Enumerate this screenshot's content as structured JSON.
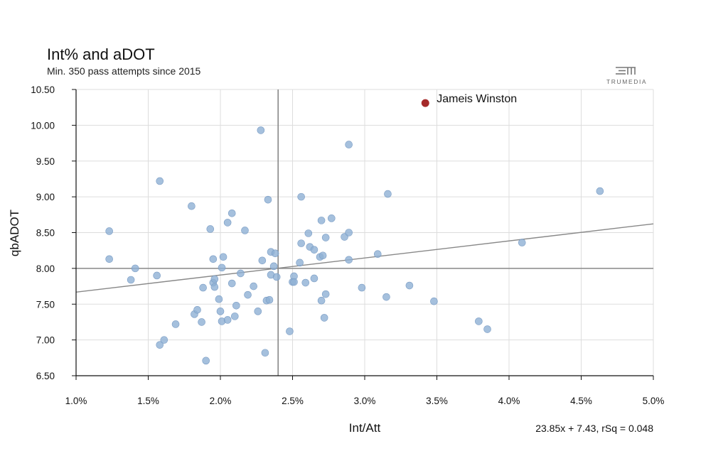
{
  "chart_data": {
    "type": "scatter",
    "title": "Int% and aDOT",
    "subtitle": "Min. 350 pass attempts since 2015",
    "xlabel": "Int/Att",
    "ylabel": "qbADOT",
    "xlim": [
      1.0,
      5.0
    ],
    "ylim": [
      6.5,
      10.5
    ],
    "x_ticks": [
      "1.0%",
      "1.5%",
      "2.0%",
      "2.5%",
      "3.0%",
      "3.5%",
      "4.0%",
      "4.5%",
      "5.0%"
    ],
    "x_tick_values": [
      1.0,
      1.5,
      2.0,
      2.5,
      3.0,
      3.5,
      4.0,
      4.5,
      5.0
    ],
    "y_ticks": [
      "10.50",
      "10.00",
      "9.50",
      "9.00",
      "8.50",
      "8.00",
      "7.50",
      "7.00",
      "6.50"
    ],
    "y_tick_values": [
      10.5,
      10.0,
      9.5,
      9.0,
      8.5,
      8.0,
      7.5,
      7.0,
      6.5
    ],
    "grid": true,
    "reference_lines": {
      "x": 2.4,
      "y": 8.0
    },
    "trendline": {
      "slope": 23.85,
      "intercept": 7.43,
      "label": "23.85x + 7.43, rSq = 0.048"
    },
    "highlight": {
      "name": "Jameis Winston",
      "x": 3.42,
      "y": 10.31,
      "color": "#a52a2a"
    },
    "point_color": "#8fb0d4",
    "points": [
      [
        1.23,
        8.52
      ],
      [
        1.23,
        8.13
      ],
      [
        1.38,
        7.84
      ],
      [
        1.41,
        8.0
      ],
      [
        1.56,
        7.9
      ],
      [
        1.58,
        9.22
      ],
      [
        1.58,
        6.93
      ],
      [
        1.61,
        7.0
      ],
      [
        1.69,
        7.22
      ],
      [
        1.8,
        8.87
      ],
      [
        1.82,
        7.36
      ],
      [
        1.84,
        7.42
      ],
      [
        1.87,
        7.25
      ],
      [
        1.88,
        7.73
      ],
      [
        1.9,
        6.71
      ],
      [
        1.93,
        8.55
      ],
      [
        1.95,
        8.13
      ],
      [
        1.95,
        7.8
      ],
      [
        1.96,
        7.74
      ],
      [
        1.96,
        7.85
      ],
      [
        1.99,
        7.57
      ],
      [
        2.0,
        7.4
      ],
      [
        2.01,
        7.26
      ],
      [
        2.01,
        8.01
      ],
      [
        2.02,
        8.16
      ],
      [
        2.05,
        7.28
      ],
      [
        2.05,
        8.64
      ],
      [
        2.08,
        8.77
      ],
      [
        2.08,
        7.79
      ],
      [
        2.1,
        7.33
      ],
      [
        2.11,
        7.48
      ],
      [
        2.14,
        7.93
      ],
      [
        2.17,
        8.53
      ],
      [
        2.19,
        7.63
      ],
      [
        2.23,
        7.75
      ],
      [
        2.26,
        7.4
      ],
      [
        2.28,
        9.93
      ],
      [
        2.29,
        8.11
      ],
      [
        2.31,
        6.82
      ],
      [
        2.32,
        7.55
      ],
      [
        2.33,
        8.96
      ],
      [
        2.34,
        7.56
      ],
      [
        2.35,
        7.91
      ],
      [
        2.35,
        8.23
      ],
      [
        2.37,
        8.03
      ],
      [
        2.38,
        8.21
      ],
      [
        2.39,
        7.88
      ],
      [
        2.48,
        7.12
      ],
      [
        2.5,
        7.81
      ],
      [
        2.51,
        7.89
      ],
      [
        2.51,
        7.81
      ],
      [
        2.55,
        8.08
      ],
      [
        2.56,
        8.35
      ],
      [
        2.56,
        9.0
      ],
      [
        2.59,
        7.8
      ],
      [
        2.61,
        8.49
      ],
      [
        2.62,
        8.3
      ],
      [
        2.65,
        7.86
      ],
      [
        2.65,
        8.26
      ],
      [
        2.69,
        8.16
      ],
      [
        2.7,
        8.67
      ],
      [
        2.7,
        7.55
      ],
      [
        2.71,
        8.18
      ],
      [
        2.72,
        7.31
      ],
      [
        2.73,
        7.64
      ],
      [
        2.73,
        8.43
      ],
      [
        2.77,
        8.7
      ],
      [
        2.86,
        8.44
      ],
      [
        2.89,
        8.5
      ],
      [
        2.89,
        8.12
      ],
      [
        2.89,
        9.73
      ],
      [
        2.98,
        7.73
      ],
      [
        3.09,
        8.2
      ],
      [
        3.15,
        7.6
      ],
      [
        3.16,
        9.04
      ],
      [
        3.31,
        7.76
      ],
      [
        3.48,
        7.54
      ],
      [
        3.79,
        7.26
      ],
      [
        3.85,
        7.15
      ],
      [
        4.09,
        8.36
      ],
      [
        4.63,
        9.08
      ]
    ]
  },
  "logo": {
    "name": "TRUMEDIA",
    "icon": "trumedia-logo-icon"
  }
}
